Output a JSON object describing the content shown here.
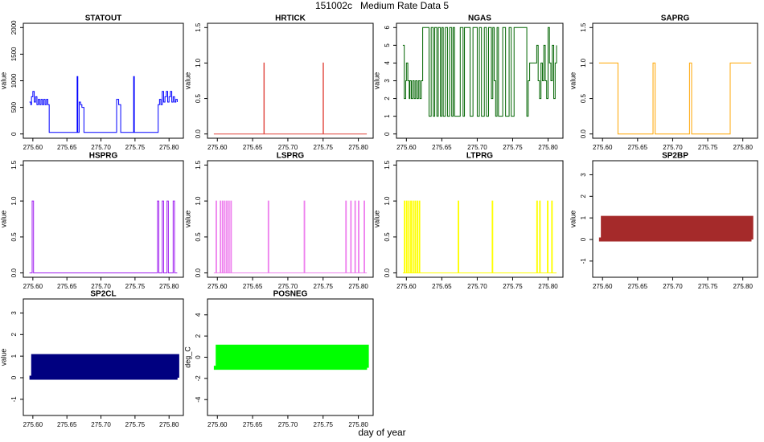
{
  "title": "151002c   Medium Rate Data 5",
  "x_label": "day of year",
  "chart_data": [
    {
      "type": "line",
      "title": "STATOUT",
      "y_label": "value",
      "color": "#0000ff",
      "step": true,
      "x": [
        275.595,
        275.597,
        275.598,
        275.6,
        275.602,
        275.604,
        275.606,
        275.608,
        275.61,
        275.612,
        275.614,
        275.616,
        275.618,
        275.62,
        275.622,
        275.624,
        275.665,
        275.666,
        275.668,
        275.67,
        275.672,
        275.675,
        275.723,
        275.726,
        275.729,
        275.748,
        275.749,
        275.784,
        275.786,
        275.788,
        275.79,
        275.792,
        275.794,
        275.796,
        275.798,
        275.8,
        275.802,
        275.804,
        275.806,
        275.808,
        275.81,
        275.812
      ],
      "values": [
        600,
        550,
        700,
        800,
        600,
        700,
        550,
        650,
        550,
        650,
        550,
        650,
        550,
        650,
        550,
        30,
        1080,
        30,
        600,
        550,
        500,
        30,
        650,
        550,
        30,
        1080,
        30,
        550,
        650,
        550,
        800,
        600,
        700,
        800,
        600,
        700,
        800,
        600,
        700,
        600,
        650,
        600
      ],
      "xlim": [
        275.586,
        275.821
      ],
      "ylim": [
        -80,
        2080
      ],
      "xticks": [
        {
          "value": 275.6,
          "label": "275.60"
        },
        275.65,
        {
          "value": 275.7,
          "label": "275.70"
        },
        275.75,
        {
          "value": 275.8,
          "label": "275.80"
        }
      ],
      "yticks": [
        0,
        500,
        1000,
        1500,
        2000
      ]
    },
    {
      "type": "line",
      "title": "HRTICK",
      "y_label": "value",
      "color": "#e0463f",
      "step": true,
      "x": [
        275.595,
        275.666,
        275.6665,
        275.75,
        275.7505,
        275.812
      ],
      "values": [
        0,
        1,
        0,
        1,
        0,
        0
      ],
      "xlim": [
        275.586,
        275.821
      ],
      "ylim": [
        -0.06,
        1.56
      ],
      "xticks": [
        {
          "value": 275.6,
          "label": "275.60"
        },
        275.65,
        {
          "value": 275.7,
          "label": "275.70"
        },
        275.75,
        {
          "value": 275.8,
          "label": "275.80"
        }
      ],
      "yticks": [
        {
          "value": 0,
          "label": "0.0"
        },
        0.5,
        {
          "value": 1,
          "label": "1.0"
        },
        1.5
      ]
    },
    {
      "type": "line",
      "title": "NGAS",
      "y_label": "value",
      "color": "#006400",
      "step": true,
      "x": [
        275.595,
        275.597,
        275.599,
        275.6,
        275.602,
        275.604,
        275.605,
        275.607,
        275.609,
        275.611,
        275.613,
        275.615,
        275.617,
        275.619,
        275.621,
        275.623,
        275.632,
        275.635,
        275.638,
        275.64,
        275.643,
        275.645,
        275.648,
        275.65,
        275.652,
        275.655,
        275.658,
        275.661,
        275.664,
        275.666,
        275.668,
        275.676,
        275.68,
        275.682,
        275.69,
        275.694,
        275.7,
        275.703,
        275.706,
        275.71,
        275.713,
        275.716,
        275.72,
        275.722,
        275.724,
        275.726,
        275.728,
        275.73,
        275.736,
        275.74,
        275.745,
        275.748,
        275.752,
        275.77,
        275.772,
        275.774,
        275.784,
        275.786,
        275.788,
        275.79,
        275.792,
        275.794,
        275.796,
        275.798,
        275.8,
        275.802,
        275.804,
        275.806,
        275.808,
        275.81,
        275.812
      ],
      "values": [
        5,
        2,
        3,
        4,
        3,
        2,
        3,
        2,
        3,
        2,
        3,
        2,
        3,
        2,
        3,
        6,
        1,
        6,
        1,
        6,
        1,
        6,
        1,
        6,
        1,
        6,
        1,
        6,
        1,
        6,
        1,
        6,
        1,
        6,
        1,
        6,
        1,
        6,
        1,
        6,
        1,
        6,
        2,
        6,
        3,
        1,
        6,
        1,
        6,
        1,
        6,
        1,
        6,
        1,
        3,
        4,
        5,
        3,
        2,
        4,
        3,
        5,
        3,
        2,
        6,
        4,
        3,
        5,
        2,
        4,
        5
      ],
      "xlim": [
        275.586,
        275.821
      ],
      "ylim": [
        -0.24,
        6.24
      ],
      "xticks": [
        {
          "value": 275.6,
          "label": "275.60"
        },
        275.65,
        {
          "value": 275.7,
          "label": "275.70"
        },
        275.75,
        {
          "value": 275.8,
          "label": "275.80"
        }
      ],
      "yticks": [
        0,
        1,
        2,
        3,
        4,
        5,
        6
      ]
    },
    {
      "type": "line",
      "title": "SAPRG",
      "y_label": "value",
      "color": "#ffa500",
      "step": true,
      "x": [
        275.595,
        275.622,
        275.672,
        275.675,
        275.724,
        275.727,
        275.782,
        275.812
      ],
      "values": [
        1,
        0,
        1,
        0,
        1,
        0,
        1,
        1
      ],
      "xlim": [
        275.586,
        275.821
      ],
      "ylim": [
        -0.06,
        1.56
      ],
      "xticks": [
        {
          "value": 275.6,
          "label": "275.60"
        },
        275.65,
        {
          "value": 275.7,
          "label": "275.70"
        },
        275.75,
        {
          "value": 275.8,
          "label": "275.80"
        }
      ],
      "yticks": [
        {
          "value": 0,
          "label": "0.0"
        },
        0.5,
        {
          "value": 1,
          "label": "1.0"
        },
        1.5
      ]
    },
    {
      "type": "line",
      "title": "HSPRG",
      "y_label": "value",
      "color": "#a020f0",
      "step": true,
      "x": [
        275.595,
        275.599,
        275.601,
        275.783,
        275.785,
        275.79,
        275.792,
        275.797,
        275.799,
        275.806,
        275.808,
        275.812
      ],
      "values": [
        0,
        1,
        0,
        1,
        0,
        1,
        0,
        1,
        0,
        1,
        0,
        0
      ],
      "xlim": [
        275.586,
        275.821
      ],
      "ylim": [
        -0.06,
        1.56
      ],
      "xticks": [
        {
          "value": 275.6,
          "label": "275.60"
        },
        275.65,
        {
          "value": 275.7,
          "label": "275.70"
        },
        275.75,
        {
          "value": 275.8,
          "label": "275.80"
        }
      ],
      "yticks": [
        {
          "value": 0,
          "label": "0.0"
        },
        0.5,
        {
          "value": 1,
          "label": "1.0"
        },
        1.5
      ]
    },
    {
      "type": "line",
      "title": "LSPRG",
      "y_label": "value",
      "color": "#ee82ee",
      "step": true,
      "x": [
        275.595,
        275.598,
        275.599,
        275.604,
        275.605,
        275.607,
        275.608,
        275.61,
        275.611,
        275.613,
        275.614,
        275.616,
        275.617,
        275.619,
        275.62,
        275.672,
        275.673,
        275.723,
        275.724,
        275.782,
        275.783,
        275.789,
        275.79,
        275.795,
        275.796,
        275.8,
        275.801,
        275.808,
        275.809,
        275.812
      ],
      "values": [
        0,
        1,
        0,
        1,
        0,
        1,
        0,
        1,
        0,
        1,
        0,
        1,
        0,
        1,
        0,
        1,
        0,
        1,
        0,
        1,
        0,
        1,
        0,
        1,
        0,
        1,
        0,
        1,
        0,
        0
      ],
      "xlim": [
        275.586,
        275.821
      ],
      "ylim": [
        -0.06,
        1.56
      ],
      "xticks": [
        {
          "value": 275.6,
          "label": "275.60"
        },
        275.65,
        {
          "value": 275.7,
          "label": "275.70"
        },
        275.75,
        {
          "value": 275.8,
          "label": "275.80"
        }
      ],
      "yticks": [
        {
          "value": 0,
          "label": "0.0"
        },
        0.5,
        {
          "value": 1,
          "label": "1.0"
        },
        1.5
      ]
    },
    {
      "type": "line",
      "title": "LTPRG",
      "y_label": "value",
      "color": "#ffff00",
      "step": true,
      "x": [
        275.595,
        275.597,
        275.598,
        275.6,
        275.601,
        275.603,
        275.604,
        275.606,
        275.607,
        275.609,
        275.61,
        275.612,
        275.613,
        275.615,
        275.616,
        275.618,
        275.619,
        275.673,
        275.674,
        275.721,
        275.722,
        275.784,
        275.785,
        275.788,
        275.789,
        275.799,
        275.8,
        275.805,
        275.806,
        275.812
      ],
      "values": [
        0,
        1,
        0,
        1,
        0,
        1,
        0,
        1,
        0,
        1,
        0,
        1,
        0,
        1,
        0,
        1,
        0,
        1,
        0,
        1,
        0,
        1,
        0,
        1,
        0,
        1,
        0,
        1,
        0,
        0
      ],
      "xlim": [
        275.586,
        275.821
      ],
      "ylim": [
        -0.06,
        1.56
      ],
      "xticks": [
        {
          "value": 275.6,
          "label": "275.60"
        },
        275.65,
        {
          "value": 275.7,
          "label": "275.70"
        },
        275.75,
        {
          "value": 275.8,
          "label": "275.80"
        }
      ],
      "yticks": [
        {
          "value": 0,
          "label": "0.0"
        },
        0.5,
        {
          "value": 1,
          "label": "1.0"
        },
        1.5
      ]
    },
    {
      "type": "line",
      "title": "SP2BP",
      "y_label": "value",
      "color": "#a52a2a",
      "step": true,
      "line_width": 5,
      "x": [
        275.595,
        275.6005,
        275.606,
        275.6115,
        275.617,
        275.6225,
        275.628,
        275.6335,
        275.639,
        275.6445,
        275.65,
        275.6555,
        275.661,
        275.6665,
        275.672,
        275.6775,
        275.683,
        275.6885,
        275.694,
        275.6995,
        275.705,
        275.7105,
        275.716,
        275.7215,
        275.727,
        275.7325,
        275.738,
        275.7435,
        275.749,
        275.7545,
        275.76,
        275.7655,
        275.771,
        275.7765,
        275.782,
        275.7875,
        275.793,
        275.7985,
        275.804,
        275.8095,
        275.812
      ],
      "values": [
        0,
        1,
        0,
        1,
        0,
        1,
        0,
        1,
        0,
        1,
        0,
        1,
        0,
        1,
        0,
        1,
        0,
        1,
        0,
        1,
        0,
        1,
        0,
        1,
        0,
        1,
        0,
        1,
        0,
        1,
        0,
        1,
        0,
        1,
        0,
        1,
        0,
        1,
        0,
        1,
        0
      ],
      "xlim": [
        275.586,
        275.821
      ],
      "ylim": [
        -1.75,
        3.65
      ],
      "xticks": [
        {
          "value": 275.6,
          "label": "275.60"
        },
        275.65,
        {
          "value": 275.7,
          "label": "275.70"
        },
        275.75,
        {
          "value": 275.8,
          "label": "275.80"
        }
      ],
      "yticks": [
        -1,
        0,
        1,
        2,
        3
      ]
    },
    {
      "type": "line",
      "title": "SP2CL",
      "y_label": "value",
      "color": "#000080",
      "step": true,
      "line_width": 5,
      "x": [
        275.595,
        275.6005,
        275.606,
        275.6115,
        275.617,
        275.6225,
        275.628,
        275.6335,
        275.639,
        275.6445,
        275.65,
        275.6555,
        275.661,
        275.6665,
        275.672,
        275.6775,
        275.683,
        275.6885,
        275.694,
        275.6995,
        275.705,
        275.7105,
        275.716,
        275.7215,
        275.727,
        275.7325,
        275.738,
        275.7435,
        275.749,
        275.7545,
        275.76,
        275.7655,
        275.771,
        275.7765,
        275.782,
        275.7875,
        275.793,
        275.7985,
        275.804,
        275.8095,
        275.812
      ],
      "values": [
        0,
        1,
        0,
        1,
        0,
        1,
        0,
        1,
        0,
        1,
        0,
        1,
        0,
        1,
        0,
        1,
        0,
        1,
        0,
        1,
        0,
        1,
        0,
        1,
        0,
        1,
        0,
        1,
        0,
        1,
        0,
        1,
        0,
        1,
        0,
        1,
        0,
        1,
        0,
        1,
        0
      ],
      "xlim": [
        275.586,
        275.821
      ],
      "ylim": [
        -1.75,
        3.65
      ],
      "xticks": [
        {
          "value": 275.6,
          "label": "275.60"
        },
        275.65,
        {
          "value": 275.7,
          "label": "275.70"
        },
        275.75,
        {
          "value": 275.8,
          "label": "275.80"
        }
      ],
      "yticks": [
        -1,
        0,
        1,
        2,
        3
      ]
    },
    {
      "type": "line",
      "title": "POSNEG",
      "y_label": "deg_C",
      "color": "#00ff00",
      "step": true,
      "line_width": 5,
      "x": [
        275.595,
        275.6005,
        275.606,
        275.6115,
        275.617,
        275.6225,
        275.628,
        275.6335,
        275.639,
        275.6445,
        275.65,
        275.6555,
        275.661,
        275.6665,
        275.672,
        275.6775,
        275.683,
        275.6885,
        275.694,
        275.6995,
        275.705,
        275.7105,
        275.716,
        275.7215,
        275.727,
        275.7325,
        275.738,
        275.7435,
        275.749,
        275.7545,
        275.76,
        275.7655,
        275.771,
        275.7765,
        275.782,
        275.7875,
        275.793,
        275.7985,
        275.804,
        275.8095,
        275.812
      ],
      "values": [
        -1,
        1,
        -1,
        1,
        -1,
        1,
        -1,
        1,
        -1,
        1,
        -1,
        1,
        -1,
        1,
        -1,
        1,
        -1,
        1,
        -1,
        1,
        -1,
        1,
        -1,
        1,
        -1,
        1,
        -1,
        1,
        -1,
        1,
        -1,
        1,
        -1,
        1,
        -1,
        1,
        -1,
        1,
        -1,
        1,
        -1
      ],
      "xlim": [
        275.586,
        275.821
      ],
      "ylim": [
        -5.5,
        5.5
      ],
      "xticks": [
        {
          "value": 275.6,
          "label": "275.60"
        },
        275.65,
        {
          "value": 275.7,
          "label": "275.70"
        },
        275.75,
        {
          "value": 275.8,
          "label": "275.80"
        }
      ],
      "yticks": [
        -4,
        -2,
        0,
        2,
        4
      ]
    }
  ]
}
